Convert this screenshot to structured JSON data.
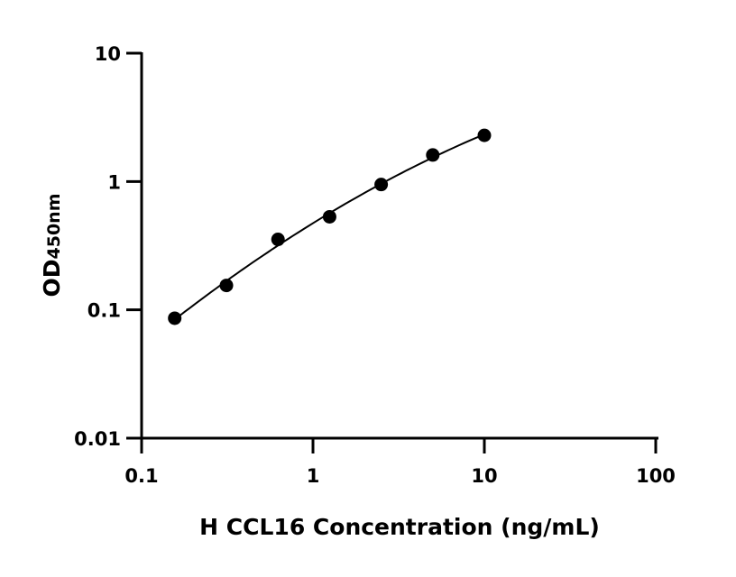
{
  "chart_data": {
    "type": "scatter",
    "title": "",
    "xlabel": "H CCL16 Concentration (ng/mL)",
    "ylabel": {
      "main": "OD",
      "subscript": "450nm"
    },
    "xscale": "log",
    "yscale": "log",
    "xlim": [
      0.1,
      100
    ],
    "ylim": [
      0.01,
      10
    ],
    "xticks": [
      0.1,
      1,
      10,
      100
    ],
    "xtick_labels": [
      "0.1",
      "1",
      "10",
      "100"
    ],
    "yticks": [
      0.01,
      0.1,
      1,
      10
    ],
    "ytick_labels": [
      "0.01",
      "0.1",
      "1",
      "10"
    ],
    "grid": false,
    "fit_line": true,
    "color": "#000000",
    "series": [
      {
        "x": [
          0.156,
          0.3125,
          0.625,
          1.25,
          2.5,
          5,
          10
        ],
        "y": [
          0.086,
          0.155,
          0.354,
          0.531,
          0.948,
          1.61,
          2.29
        ]
      }
    ]
  }
}
